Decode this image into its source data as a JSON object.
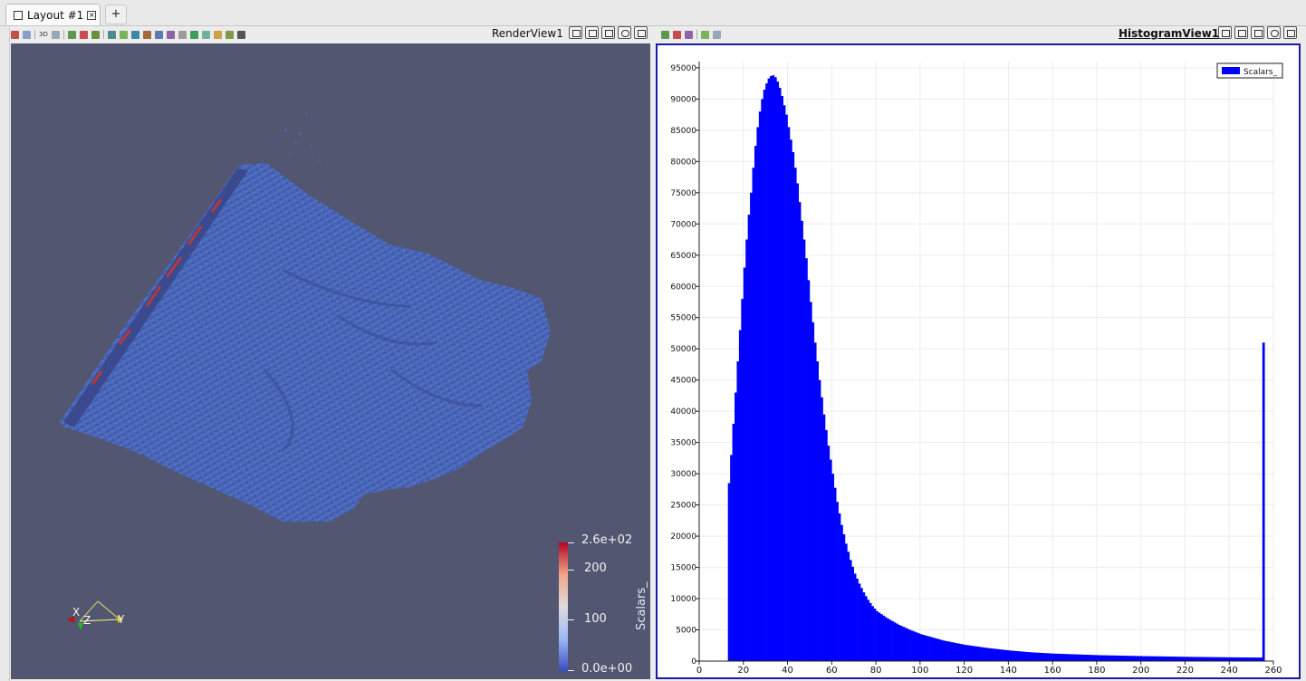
{
  "tabs": [
    {
      "label": "Layout #1"
    }
  ],
  "add_tab_label": "+",
  "toolbar": {
    "threed_label": "3D"
  },
  "render_view": {
    "title": "RenderView1",
    "colorbar": {
      "title": "Scalars_",
      "top_label": "2.6e+02",
      "mid_labels": [
        "200",
        "100"
      ],
      "bottom_label": "0.0e+00",
      "colors": [
        "#b40426",
        "#f2cbb7",
        "#dddcdc",
        "#3b4cc0"
      ]
    },
    "axes": {
      "x": "X",
      "y": "Y",
      "z": "Z"
    },
    "surface_color": "#4a65b8",
    "background_color": "#525670"
  },
  "histogram_view": {
    "title": "HistogramView1",
    "legend": "Scalars_",
    "bar_color": "#0000ff"
  },
  "chart_data": {
    "type": "bar",
    "series": [
      {
        "name": "Scalars_"
      }
    ],
    "xlim": [
      0,
      260
    ],
    "ylim": [
      0,
      96000
    ],
    "x_ticks": [
      "0",
      "20",
      "40",
      "60",
      "80",
      "100",
      "120",
      "140",
      "160",
      "180",
      "200",
      "220",
      "240",
      "260"
    ],
    "y_ticks": [
      "0",
      "5000",
      "10000",
      "15000",
      "20000",
      "25000",
      "30000",
      "35000",
      "40000",
      "45000",
      "50000",
      "55000",
      "60000",
      "65000",
      "70000",
      "75000",
      "80000",
      "85000",
      "90000",
      "95000"
    ],
    "grid": true,
    "legend_position": "top-right",
    "bin_width": 1,
    "x": [
      13,
      14,
      15,
      16,
      17,
      18,
      19,
      20,
      21,
      22,
      23,
      24,
      25,
      26,
      27,
      28,
      29,
      30,
      31,
      32,
      33,
      34,
      35,
      36,
      37,
      38,
      39,
      40,
      41,
      42,
      43,
      44,
      45,
      46,
      47,
      48,
      49,
      50,
      52,
      54,
      56,
      58,
      60,
      62,
      64,
      66,
      68,
      70,
      72,
      74,
      76,
      78,
      80,
      85,
      90,
      95,
      100,
      110,
      120,
      130,
      140,
      150,
      160,
      180,
      200,
      220,
      240,
      254,
      255
    ],
    "values": [
      28500,
      33000,
      38000,
      43000,
      48000,
      53000,
      58000,
      63000,
      67500,
      71500,
      75000,
      79000,
      82500,
      85500,
      88000,
      90000,
      91500,
      92500,
      93300,
      93700,
      93800,
      93500,
      92800,
      91800,
      90500,
      89000,
      87500,
      85500,
      83500,
      81500,
      79000,
      76500,
      73500,
      70500,
      67500,
      64500,
      61000,
      57500,
      51000,
      45000,
      39500,
      34500,
      30000,
      25500,
      21800,
      18800,
      16200,
      14000,
      12400,
      11000,
      9800,
      8800,
      8000,
      6800,
      5800,
      5000,
      4300,
      3300,
      2600,
      2100,
      1700,
      1400,
      1200,
      950,
      800,
      680,
      600,
      560,
      51000
    ]
  }
}
